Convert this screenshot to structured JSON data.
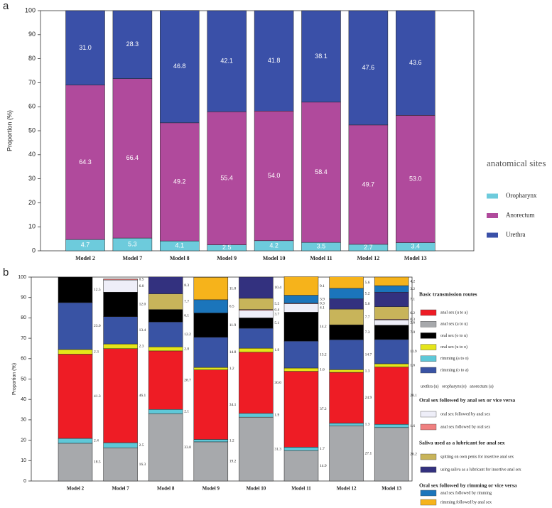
{
  "chart_data": [
    {
      "type": "bar",
      "stacked": true,
      "panel": "a",
      "ylabel": "Proportion (%)",
      "legend_title": "anatomical sites",
      "categories": [
        "Model 2",
        "Model 7",
        "Model 8",
        "Model 9",
        "Model 10",
        "Model 11",
        "Model 12",
        "Model 13"
      ],
      "ylim": [
        0,
        100
      ],
      "yticks": [
        0,
        10,
        20,
        30,
        40,
        50,
        60,
        70,
        80,
        90,
        100
      ],
      "series": [
        {
          "name": "Oropharynx",
          "color": "#6dcbdc",
          "values": [
            4.7,
            5.3,
            4.1,
            2.5,
            4.2,
            3.5,
            2.7,
            3.4
          ],
          "value_labels": [
            "4.7",
            "5.3",
            "4.1",
            "2.5",
            "4.2",
            "3.5",
            "2.7",
            "3.4"
          ]
        },
        {
          "name": "Anorectum",
          "color": "#b04a9c",
          "values": [
            64.3,
            66.4,
            49.2,
            55.4,
            54.0,
            58.4,
            49.7,
            53.0
          ],
          "value_labels": [
            "64.3",
            "66.4",
            "49.2",
            "55.4",
            "54.0",
            "58.4",
            "49.7",
            "53.0"
          ]
        },
        {
          "name": "Urethra",
          "color": "#3a50a8",
          "values": [
            31.0,
            28.3,
            46.8,
            42.1,
            41.8,
            38.1,
            47.6,
            43.6
          ],
          "value_labels": [
            "31.0",
            "28.3",
            "46.8",
            "42.1",
            "41.8",
            "38.1",
            "47.6",
            "43.6"
          ]
        }
      ]
    },
    {
      "type": "bar",
      "stacked": true,
      "panel": "b",
      "ylabel": "Proportion (%)",
      "legend_titles": [
        "Basic transmission routes",
        "Oral sex followed by anal sex or vice versa",
        "Saliva used as a lubricant for anal sex",
        "Oral sex followed by rimming or vice versa"
      ],
      "legend_note": "urethra (u)   oropharynx(o)   anorectum (a)",
      "categories": [
        "Model 2",
        "Model 7",
        "Model 8",
        "Model 9",
        "Model 10",
        "Model 11",
        "Model 12",
        "Model 13"
      ],
      "ylim": [
        0,
        100
      ],
      "yticks": [
        0,
        10,
        20,
        30,
        40,
        50,
        60,
        70,
        80,
        90,
        100
      ],
      "series": [
        {
          "name": "anal sex (a to u)",
          "color": "#a7a9ac",
          "values": [
            18.5,
            16.3,
            33.0,
            19.2,
            31.3,
            14.9,
            27.1,
            26.2
          ],
          "value_labels": [
            "18.5",
            "16.3",
            "33.0",
            "19.2",
            "31.3",
            "14.9",
            "27.1",
            "26.2"
          ]
        },
        {
          "name": "rimming (a to o)",
          "color": "#5ec8d8",
          "values": [
            2.4,
            2.5,
            2.1,
            1.2,
            1.9,
            1.7,
            1.3,
            1.6
          ],
          "value_labels": [
            "2.4",
            "2.5",
            "2.1",
            "1.2",
            "1.9",
            "1.7",
            "1.3",
            "1.6"
          ]
        },
        {
          "name": "anal sex (u to a)",
          "color": "#ee1c25",
          "values": [
            41.3,
            46.1,
            28.7,
            34.1,
            30.0,
            37.2,
            24.9,
            28.1
          ],
          "value_labels": [
            "41.3",
            "46.1",
            "28.7",
            "34.1",
            "30.0",
            "37.2",
            "24.9",
            "28.1"
          ]
        },
        {
          "name": "oral sex (u to o)",
          "color": "#e5e51a",
          "values": [
            2.3,
            2.3,
            2.0,
            1.2,
            1.9,
            1.6,
            1.3,
            1.6
          ],
          "value_labels": [
            "2.3",
            "2.3",
            "2.0",
            "1.2",
            "1.9",
            "1.6",
            "1.3",
            "1.6"
          ]
        },
        {
          "name": "rimming (o to a)",
          "color": "#3953a4",
          "values": [
            23.0,
            13.4,
            12.2,
            14.8,
            9.8,
            13.2,
            14.7,
            11.9
          ],
          "value_labels": [
            "23.0",
            "13.4",
            "12.2",
            "14.8",
            null,
            "13.2",
            "14.7",
            "11.9"
          ]
        },
        {
          "name": "oral sex (o to u)",
          "color": "#000000",
          "values": [
            12.5,
            12.0,
            6.1,
            11.9,
            5.1,
            14.2,
            7.3,
            7.0
          ],
          "value_labels": [
            "12.5",
            "12.0",
            "6.1",
            "11.9",
            "5.1",
            "14.2",
            "7.3",
            "7.0"
          ]
        },
        {
          "name": "oral sex followed by anal sex",
          "color": "#eeeef8",
          "values": [
            null,
            6.0,
            null,
            null,
            3.7,
            4.1,
            null,
            2.6
          ],
          "value_labels": [
            null,
            "6.0",
            null,
            null,
            "3.7",
            "4.1",
            null,
            "2.6"
          ]
        },
        {
          "name": "anal sex followed by oral sex",
          "color": "#f08080",
          "values": [
            null,
            0.5,
            null,
            null,
            0.4,
            0.3,
            null,
            0.3
          ],
          "value_labels": [
            null,
            "0.5",
            null,
            null,
            "0.4",
            "0.3",
            null,
            "0.3"
          ]
        },
        {
          "name": "spitting on own penis for insertive anal sex",
          "color": "#c8b45a",
          "values": [
            null,
            null,
            7.7,
            null,
            5.5,
            null,
            7.7,
            6.2
          ],
          "value_labels": [
            null,
            null,
            "7.7",
            null,
            "5.5",
            null,
            "7.7",
            "6.2"
          ]
        },
        {
          "name": "using saliva as a lubricant for insertive anal sex",
          "color": "#33317f",
          "values": [
            null,
            null,
            8.3,
            null,
            10.4,
            null,
            5.0,
            7.1
          ],
          "value_labels": [
            null,
            null,
            "8.3",
            null,
            "10.4",
            null,
            "5.0",
            "7.1"
          ]
        },
        {
          "name": "anal sex followed by rimming",
          "color": "#1b75bb",
          "values": [
            null,
            null,
            null,
            6.5,
            null,
            3.9,
            5.2,
            3.2
          ],
          "value_labels": [
            null,
            null,
            null,
            "6.5",
            null,
            "3.9",
            "5.2",
            "3.2"
          ]
        },
        {
          "name": "rimming followed by anal sex",
          "color": "#f6b31b",
          "values": [
            null,
            null,
            null,
            11.0,
            null,
            9.1,
            5.6,
            4.2
          ],
          "value_labels": [
            null,
            null,
            null,
            "11.0",
            null,
            "9.1",
            "5.6",
            "4.2"
          ]
        }
      ]
    }
  ]
}
